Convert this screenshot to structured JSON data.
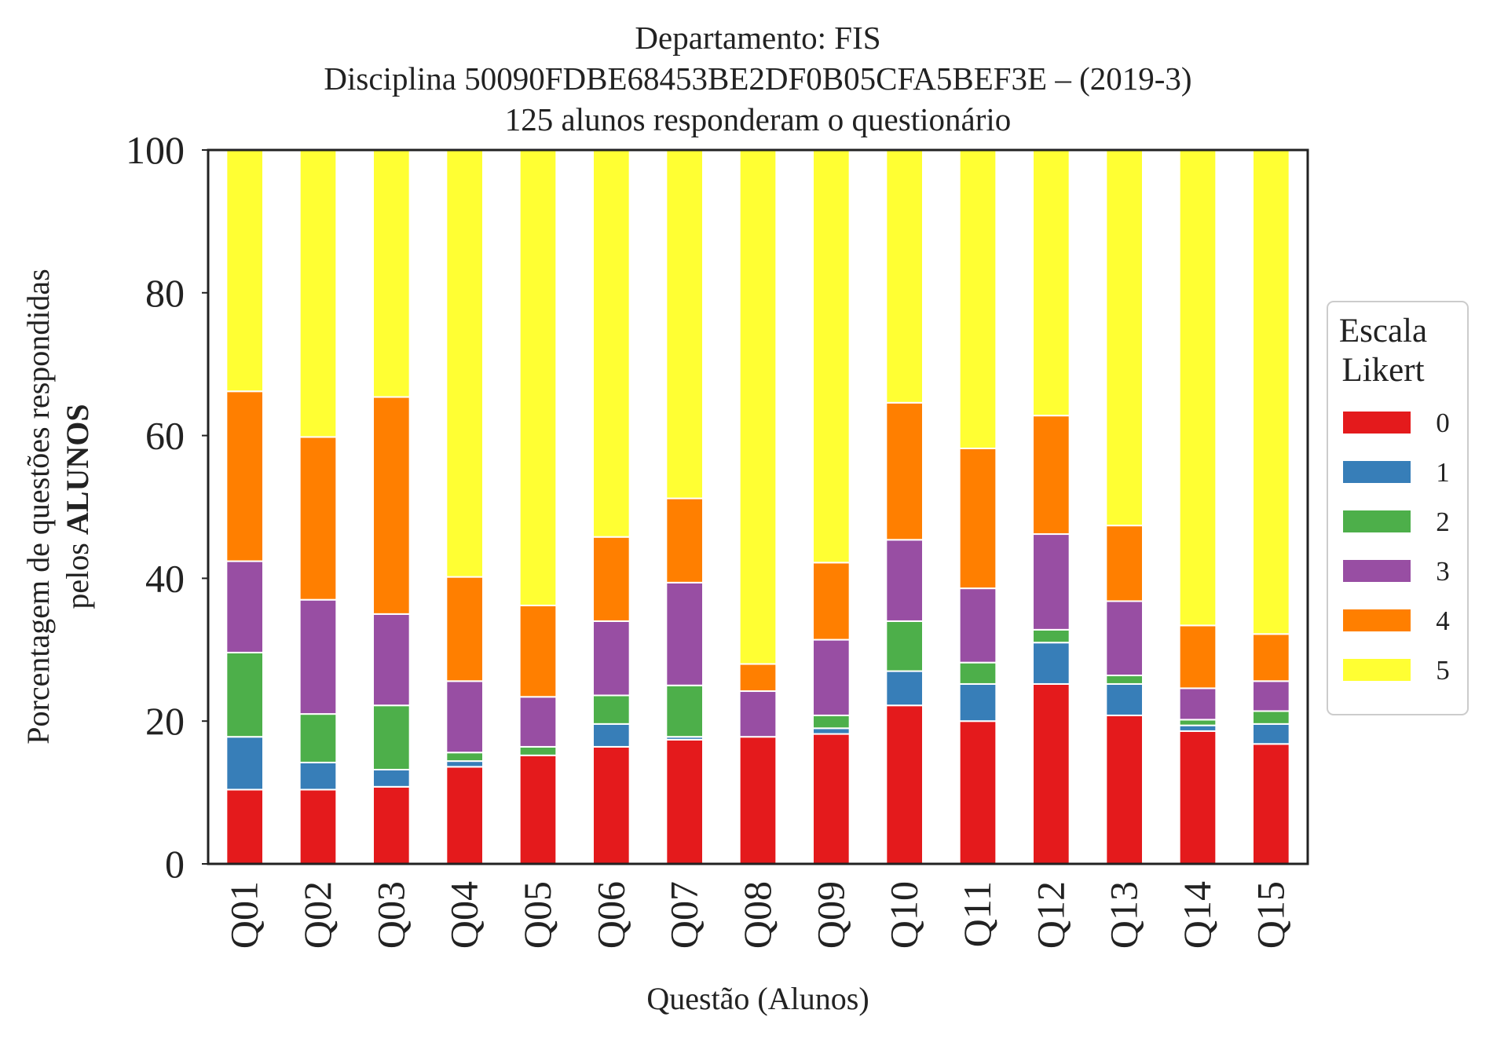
{
  "chart_data": {
    "type": "bar",
    "stacked": true,
    "title_lines": [
      "Departamento: FIS",
      "Disciplina 50090FDBE68453BE2DF0B05CFA5BEF3E – (2019-3)",
      "125 alunos responderam o questionário"
    ],
    "xlabel": "Questão (Alunos)",
    "ylabel_line1": "Porcentagem de questões respondidas",
    "ylabel_line2_prefix": "pelos ",
    "ylabel_line2_bold": "ALUNOS",
    "ylim": [
      0,
      100
    ],
    "yticks": [
      "0",
      "20",
      "40",
      "60",
      "80",
      "100"
    ],
    "grid": false,
    "legend": {
      "title_lines": [
        "Escala",
        "Likert"
      ],
      "placement": "right-center"
    },
    "categories": [
      "Q01",
      "Q02",
      "Q03",
      "Q04",
      "Q05",
      "Q06",
      "Q07",
      "Q08",
      "Q09",
      "Q10",
      "Q11",
      "Q12",
      "Q13",
      "Q14",
      "Q15"
    ],
    "series": [
      {
        "name": "0",
        "color": "#e41a1c",
        "values": [
          10.4,
          10.4,
          10.8,
          13.6,
          15.2,
          16.4,
          17.4,
          17.8,
          18.2,
          22.2,
          20.0,
          25.2,
          20.8,
          18.6,
          16.8
        ]
      },
      {
        "name": "1",
        "color": "#377eb8",
        "values": [
          7.4,
          3.8,
          2.4,
          0.8,
          0.0,
          3.2,
          0.4,
          0.0,
          0.8,
          4.8,
          5.2,
          5.8,
          4.4,
          0.8,
          2.8
        ]
      },
      {
        "name": "2",
        "color": "#4daf4a",
        "values": [
          11.8,
          6.8,
          9.0,
          1.2,
          1.2,
          4.0,
          7.2,
          0.0,
          1.8,
          7.0,
          3.0,
          1.8,
          1.2,
          0.8,
          1.8
        ]
      },
      {
        "name": "3",
        "color": "#984ea3",
        "values": [
          12.8,
          16.0,
          12.8,
          10.0,
          7.0,
          10.4,
          14.4,
          6.4,
          10.6,
          11.4,
          10.4,
          13.4,
          10.4,
          4.4,
          4.2
        ]
      },
      {
        "name": "4",
        "color": "#ff7f00",
        "values": [
          23.8,
          22.8,
          30.4,
          14.6,
          12.8,
          11.8,
          11.8,
          3.8,
          10.8,
          19.2,
          19.6,
          16.6,
          10.6,
          8.8,
          6.6
        ]
      },
      {
        "name": "5",
        "color": "#ffff33",
        "values": [
          33.8,
          40.2,
          34.6,
          59.8,
          63.8,
          54.2,
          48.8,
          72.0,
          57.8,
          35.4,
          41.8,
          37.2,
          52.6,
          66.6,
          67.8
        ]
      }
    ]
  }
}
